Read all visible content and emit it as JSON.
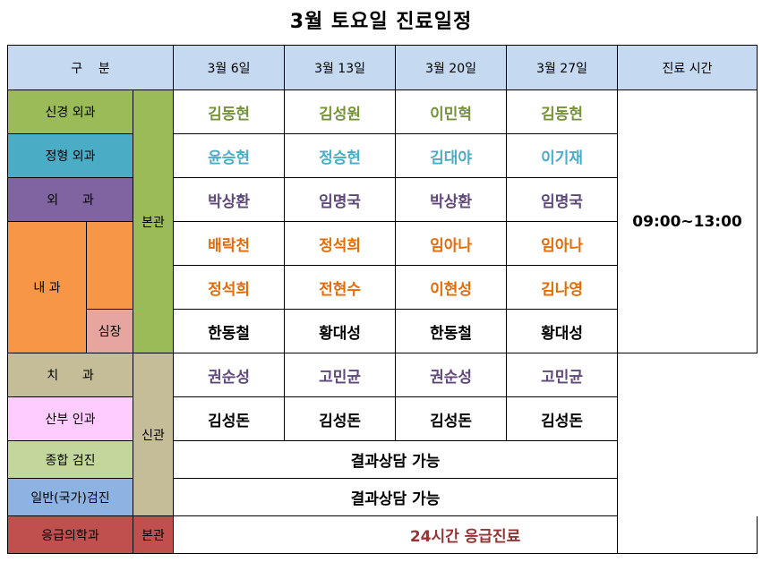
{
  "title": "3월 토요일 진료일정",
  "header": {
    "category": "구    분",
    "dates": [
      "3월 6일",
      "3월 13일",
      "3월 20일",
      "3월 27일"
    ],
    "time_label": "진료 시간"
  },
  "buildings": {
    "main": "본관",
    "new": "신관",
    "emergency": "본관"
  },
  "departments": {
    "neuro": "신경 외과",
    "ortho": "정형 외과",
    "general": "외      과",
    "internal": "내 과",
    "cardio": "심장",
    "dental": "치      과",
    "obgyn": "산부 인과",
    "health": "종합 검진",
    "national": "일반(국가)검진",
    "emergency": "응급의학과"
  },
  "doctors": {
    "neuro": [
      "김동현",
      "김성원",
      "이민혁",
      "김동현"
    ],
    "ortho": [
      "윤승현",
      "정승현",
      "김대야",
      "이기재"
    ],
    "general": [
      "박상환",
      "임명국",
      "박상환",
      "임명국"
    ],
    "internal1": [
      "배락천",
      "정석희",
      "임아나",
      "임아나"
    ],
    "internal2": [
      "정석희",
      "전현수",
      "이현성",
      "김나영"
    ],
    "cardio": [
      "한동철",
      "황대성",
      "한동철",
      "황대성"
    ],
    "dental": [
      "권순성",
      "고민균",
      "권순성",
      "고민균"
    ],
    "obgyn": [
      "김성돈",
      "김성돈",
      "김성돈",
      "김성돈"
    ]
  },
  "hours": "09:00~13:00",
  "health_note": "결과상담 가능",
  "national_note": "결과상담 가능",
  "emergency_note": "24시간 응급진료",
  "colors": {
    "header": "#c5d9f1",
    "neuro": "#9bbb59",
    "ortho": "#4bacc6",
    "general": "#8064a2",
    "internal": "#f79646",
    "cardio": "#e6a59e",
    "dental": "#c4bd97",
    "obgyn": "#ffccff",
    "health": "#c3d69b",
    "national": "#8db3e2",
    "emergency": "#c0504d"
  }
}
